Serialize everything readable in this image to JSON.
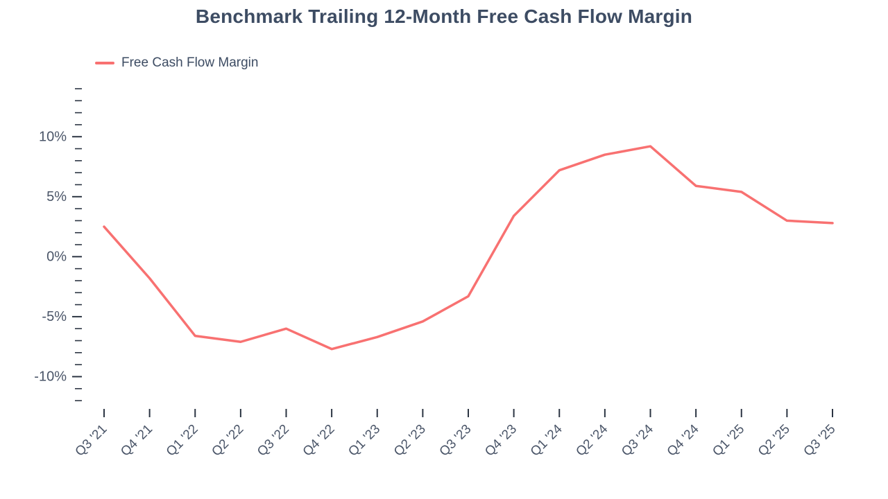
{
  "chart_data": {
    "type": "line",
    "title": "Benchmark Trailing 12-Month Free Cash Flow Margin",
    "xlabel": "",
    "ylabel": "",
    "categories": [
      "Q3 '21",
      "Q4 '21",
      "Q1 '22",
      "Q2 '22",
      "Q3 '22",
      "Q4 '22",
      "Q1 '23",
      "Q2 '23",
      "Q3 '23",
      "Q4 '23",
      "Q1 '24",
      "Q2 '24",
      "Q3 '24",
      "Q4 '24",
      "Q1 '25",
      "Q2 '25",
      "Q3 '25"
    ],
    "series": [
      {
        "name": "Free Cash Flow Margin",
        "color": "#f87171",
        "values": [
          2.5,
          -1.8,
          -6.6,
          -7.1,
          -6.0,
          -7.7,
          -6.7,
          -5.4,
          -3.3,
          3.4,
          7.2,
          8.5,
          9.2,
          5.9,
          5.4,
          3.0,
          2.8
        ]
      }
    ],
    "ylim": [
      -12.4,
      14.0
    ],
    "y_major_ticks": [
      -10,
      -5,
      0,
      5,
      10
    ],
    "y_tick_labels": [
      "-10%",
      "-5%",
      "0%",
      "5%",
      "10%"
    ],
    "y_minor_step": 1,
    "grid": false,
    "legend_position": "top-left",
    "colors": {
      "title": "#3d4c63",
      "tick_label": "#4a5568",
      "axis": "#2b3442"
    }
  }
}
